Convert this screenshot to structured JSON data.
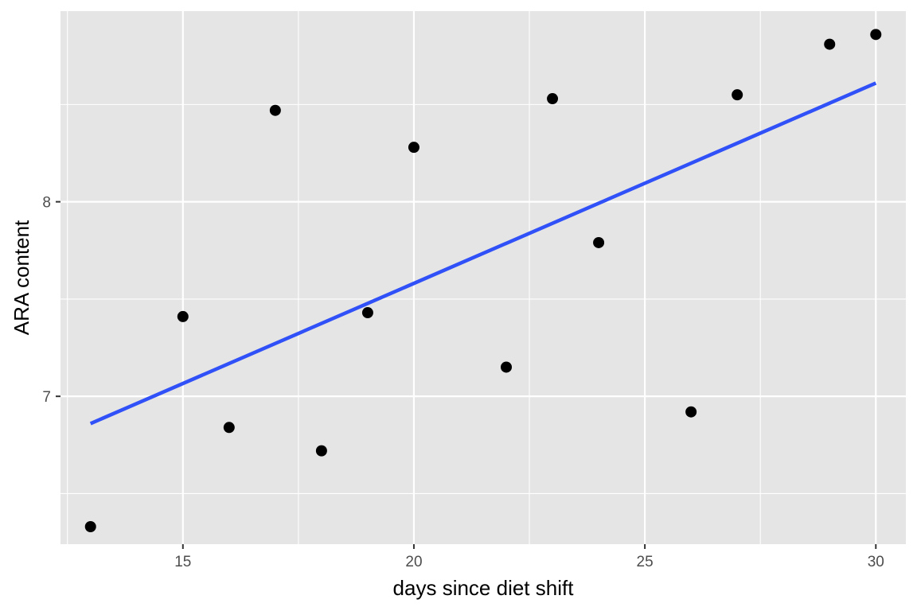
{
  "chart_data": {
    "type": "scatter",
    "title": "",
    "xlabel": "days since diet shift",
    "ylabel": "ARA content",
    "xlim": [
      12.35,
      30.65
    ],
    "ylim": [
      6.24,
      8.98
    ],
    "x_ticks": [
      15,
      20,
      25,
      30
    ],
    "y_ticks": [
      7,
      8
    ],
    "grid": true,
    "legend": "none",
    "points": [
      {
        "x": 13,
        "y": 6.33
      },
      {
        "x": 15,
        "y": 7.41
      },
      {
        "x": 16,
        "y": 6.84
      },
      {
        "x": 17,
        "y": 8.47
      },
      {
        "x": 18,
        "y": 6.72
      },
      {
        "x": 19,
        "y": 7.43
      },
      {
        "x": 20,
        "y": 8.28
      },
      {
        "x": 22,
        "y": 7.15
      },
      {
        "x": 23,
        "y": 8.53
      },
      {
        "x": 24,
        "y": 7.79
      },
      {
        "x": 26,
        "y": 6.92
      },
      {
        "x": 27,
        "y": 8.55
      },
      {
        "x": 29,
        "y": 8.81
      },
      {
        "x": 30,
        "y": 8.86
      }
    ],
    "trend_line": {
      "x": [
        13,
        30
      ],
      "y": [
        6.86,
        8.61
      ]
    },
    "colors": {
      "panel": "#e5e5e5",
      "grid": "#ffffff",
      "point": "#000000",
      "trend_line": "#3050f8",
      "tick_label": "#4d4d4d",
      "axis_title": "#000000"
    }
  }
}
